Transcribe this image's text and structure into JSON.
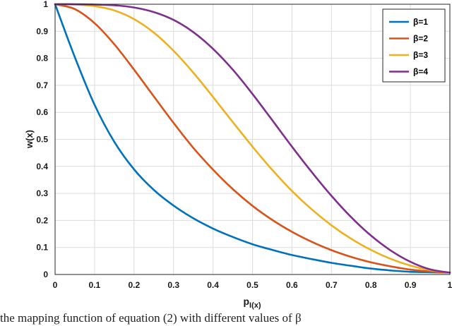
{
  "chart_data": {
    "type": "line",
    "xlabel": "p",
    "xlabel_subscript": "I(x)",
    "ylabel": "w(x)",
    "xlim": [
      0,
      1
    ],
    "ylim": [
      0,
      1
    ],
    "xticks": [
      "0",
      "0.1",
      "0.2",
      "0.3",
      "0.4",
      "0.5",
      "0.6",
      "0.7",
      "0.8",
      "0.9",
      "1"
    ],
    "yticks": [
      "0",
      "0.1",
      "0.2",
      "0.3",
      "0.4",
      "0.5",
      "0.6",
      "0.7",
      "0.8",
      "0.9",
      "1"
    ],
    "grid": true,
    "legend_position": "top-right",
    "x": [
      0,
      0.05,
      0.1,
      0.15,
      0.2,
      0.25,
      0.3,
      0.35,
      0.4,
      0.45,
      0.5,
      0.55,
      0.6,
      0.65,
      0.7,
      0.75,
      0.8,
      0.85,
      0.9,
      0.95,
      1
    ],
    "series": [
      {
        "name": "β=1",
        "color": "#0072bd",
        "values": [
          1.0,
          0.804,
          0.628,
          0.491,
          0.389,
          0.313,
          0.255,
          0.208,
          0.17,
          0.139,
          0.112,
          0.091,
          0.072,
          0.057,
          0.043,
          0.032,
          0.022,
          0.015,
          0.01,
          0.008,
          0.007
        ]
      },
      {
        "name": "β=2",
        "color": "#d95319",
        "values": [
          1.0,
          0.982,
          0.93,
          0.852,
          0.758,
          0.659,
          0.561,
          0.469,
          0.388,
          0.316,
          0.254,
          0.202,
          0.158,
          0.121,
          0.09,
          0.065,
          0.045,
          0.03,
          0.018,
          0.011,
          0.007
        ]
      },
      {
        "name": "β=3",
        "color": "#edb120",
        "values": [
          1.0,
          0.999,
          0.993,
          0.977,
          0.945,
          0.895,
          0.828,
          0.747,
          0.657,
          0.564,
          0.473,
          0.387,
          0.309,
          0.241,
          0.182,
          0.132,
          0.091,
          0.058,
          0.033,
          0.016,
          0.007
        ]
      },
      {
        "name": "β=4",
        "color": "#7e2f8e",
        "values": [
          1.0,
          1.0,
          0.999,
          0.996,
          0.988,
          0.971,
          0.942,
          0.897,
          0.835,
          0.758,
          0.668,
          0.571,
          0.473,
          0.379,
          0.291,
          0.212,
          0.144,
          0.089,
          0.047,
          0.019,
          0.007
        ]
      }
    ]
  },
  "caption": "the mapping function of equation (2) with different values of β"
}
